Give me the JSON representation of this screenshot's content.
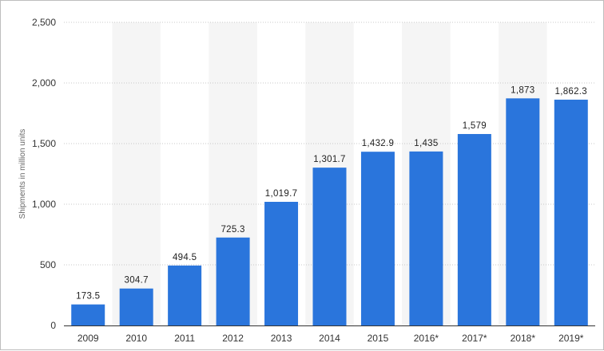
{
  "chart_data": {
    "type": "bar",
    "title": "",
    "xlabel": "",
    "ylabel": "Shipments in million units",
    "ylim": [
      0,
      2500
    ],
    "yticks": [
      0,
      500,
      1000,
      1500,
      2000,
      2500
    ],
    "ytick_labels": [
      "0",
      "500",
      "1,000",
      "1,500",
      "2,000",
      "2,500"
    ],
    "categories": [
      "2009",
      "2010",
      "2011",
      "2012",
      "2013",
      "2014",
      "2015",
      "2016*",
      "2017*",
      "2018*",
      "2019*"
    ],
    "values": [
      173.5,
      304.7,
      494.5,
      725.3,
      1019.7,
      1301.7,
      1432.9,
      1435,
      1579,
      1873,
      1862.3
    ],
    "value_labels": [
      "173.5",
      "304.7",
      "494.5",
      "725.3",
      "1,019.7",
      "1,301.7",
      "1,432.9",
      "1,435",
      "1,579",
      "1,873",
      "1,862.3"
    ],
    "grid": true,
    "alternating_column_bands": true,
    "colors": {
      "bar": "#2a75dc",
      "band": "#f5f5f5",
      "grid": "#c8c8c8",
      "axis": "#333333"
    }
  }
}
